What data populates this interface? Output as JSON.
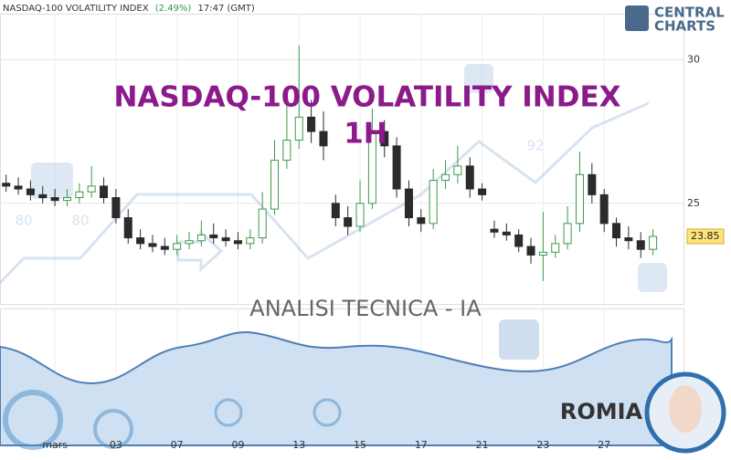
{
  "header": {
    "symbol": "NASDAQ-100 VOLATILITY INDEX",
    "change": "(2.49%)",
    "time": "17:47 (GMT)"
  },
  "logo": {
    "line1": "CENTRAL",
    "line2": "CHARTS"
  },
  "overlay": {
    "title": "NASDAQ-100 VOLATILITY INDEX",
    "timeframe": "1H",
    "subtitle": "ANALISI TECNICA - IA",
    "brand": "ROMIA",
    "watermark_labels": [
      "80",
      "80",
      "92"
    ]
  },
  "chart_data": {
    "type": "candlestick",
    "categories": [
      null,
      null,
      null,
      null,
      "mars",
      null,
      null,
      null,
      null,
      "03",
      null,
      null,
      null,
      null,
      "07",
      null,
      null,
      null,
      null,
      "09",
      null,
      null,
      null,
      null,
      "13",
      null,
      null,
      null,
      null,
      "15",
      null,
      null,
      null,
      null,
      "17",
      null,
      null,
      null,
      null,
      "21",
      null,
      null,
      null,
      null,
      "23",
      null,
      null,
      null,
      null,
      "27",
      null,
      null,
      null,
      null
    ],
    "open": [
      25.7,
      25.6,
      25.5,
      25.3,
      25.2,
      25.1,
      25.2,
      25.4,
      25.6,
      25.2,
      24.5,
      23.8,
      23.6,
      23.5,
      23.4,
      23.6,
      23.7,
      23.9,
      23.8,
      23.7,
      23.6,
      23.8,
      24.8,
      26.5,
      27.2,
      28.0,
      27.5,
      25.0,
      24.5,
      24.2,
      25.0,
      27.5,
      27.0,
      25.5,
      24.5,
      24.3,
      25.8,
      26.0,
      26.3,
      25.5,
      24.1,
      24.0,
      23.9,
      23.5,
      23.2,
      23.3,
      23.6,
      24.3,
      26.0,
      25.3,
      24.3,
      23.8,
      23.7,
      23.4
    ],
    "high": [
      26.0,
      25.9,
      25.8,
      25.6,
      25.5,
      25.5,
      25.7,
      26.3,
      25.9,
      25.5,
      24.8,
      24.1,
      23.9,
      23.8,
      23.9,
      24.0,
      24.4,
      24.3,
      24.1,
      24.0,
      24.1,
      25.4,
      27.2,
      28.5,
      30.5,
      28.6,
      28.2,
      25.3,
      24.9,
      25.8,
      28.3,
      27.9,
      27.3,
      25.8,
      24.8,
      26.2,
      26.5,
      27.0,
      26.6,
      25.7,
      24.4,
      24.3,
      24.1,
      23.8,
      24.7,
      23.9,
      24.9,
      26.8,
      26.4,
      25.5,
      24.5,
      24.2,
      24.0,
      24.1
    ],
    "low": [
      25.4,
      25.3,
      25.1,
      25.0,
      24.9,
      24.9,
      25.0,
      25.2,
      25.0,
      24.3,
      23.6,
      23.4,
      23.3,
      23.2,
      23.2,
      23.4,
      23.5,
      23.6,
      23.5,
      23.4,
      23.4,
      23.6,
      24.6,
      26.2,
      26.9,
      27.1,
      26.5,
      24.2,
      23.9,
      24.0,
      24.8,
      26.6,
      25.2,
      24.2,
      24.0,
      24.1,
      25.5,
      25.7,
      25.2,
      25.1,
      23.8,
      23.7,
      23.3,
      22.9,
      22.3,
      23.1,
      23.4,
      24.0,
      25.0,
      24.0,
      23.5,
      23.4,
      23.1,
      23.2
    ],
    "close": [
      25.6,
      25.5,
      25.3,
      25.2,
      25.1,
      25.2,
      25.4,
      25.6,
      25.2,
      24.5,
      23.8,
      23.6,
      23.5,
      23.4,
      23.6,
      23.7,
      23.9,
      23.8,
      23.7,
      23.6,
      23.8,
      24.8,
      26.5,
      27.2,
      28.0,
      27.5,
      27.0,
      24.5,
      24.2,
      25.0,
      27.5,
      27.0,
      25.5,
      24.5,
      24.3,
      25.8,
      26.0,
      26.3,
      25.5,
      25.3,
      24.0,
      23.9,
      23.5,
      23.2,
      23.3,
      23.6,
      24.3,
      26.0,
      25.3,
      24.3,
      23.8,
      23.7,
      23.4,
      23.85
    ],
    "up_color": "#3c9a4a",
    "down_color": "#2b2b2b",
    "ylim": [
      21.5,
      31.6
    ],
    "yticks": [
      30,
      25
    ],
    "grid": true,
    "last_value": 23.85
  }
}
